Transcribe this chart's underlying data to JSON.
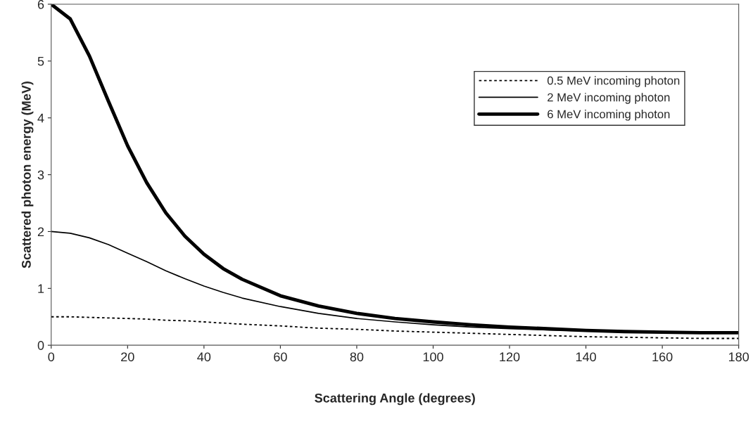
{
  "chart_data": {
    "type": "line",
    "xlabel": "Scattering Angle (degrees)",
    "ylabel": "Scattered photon energy (MeV)",
    "x": [
      0,
      5,
      10,
      15,
      20,
      25,
      30,
      35,
      40,
      45,
      50,
      60,
      70,
      80,
      90,
      100,
      110,
      120,
      130,
      140,
      150,
      160,
      170,
      180
    ],
    "series": [
      {
        "name": "0.5 MeV incoming photon",
        "color": "#000000",
        "line_style": "dotted",
        "values": [
          0.5,
          0.5,
          0.49,
          0.48,
          0.47,
          0.46,
          0.44,
          0.43,
          0.41,
          0.39,
          0.37,
          0.34,
          0.3,
          0.28,
          0.25,
          0.23,
          0.21,
          0.19,
          0.17,
          0.15,
          0.14,
          0.13,
          0.12,
          0.12
        ]
      },
      {
        "name": "2 MeV incoming photon",
        "color": "#000000",
        "line_style": "solid",
        "values": [
          2.0,
          1.97,
          1.89,
          1.77,
          1.62,
          1.47,
          1.31,
          1.17,
          1.04,
          0.93,
          0.83,
          0.68,
          0.56,
          0.47,
          0.41,
          0.36,
          0.32,
          0.29,
          0.27,
          0.25,
          0.24,
          0.23,
          0.22,
          0.22
        ]
      },
      {
        "name": "6 MeV incoming photon",
        "color": "#000000",
        "line_style": "solid",
        "values": [
          6.0,
          5.74,
          5.09,
          4.29,
          3.51,
          2.86,
          2.33,
          1.92,
          1.6,
          1.35,
          1.16,
          0.87,
          0.69,
          0.56,
          0.47,
          0.41,
          0.36,
          0.32,
          0.29,
          0.26,
          0.24,
          0.23,
          0.22,
          0.22
        ]
      }
    ],
    "xlim": [
      0,
      180
    ],
    "xticks": [
      0,
      20,
      40,
      60,
      80,
      100,
      120,
      140,
      160,
      180
    ],
    "ylim": [
      0,
      6
    ],
    "yticks": [
      0,
      1,
      2,
      3,
      4,
      5,
      6
    ],
    "grid": false,
    "legend": "top right",
    "marker": "none"
  }
}
